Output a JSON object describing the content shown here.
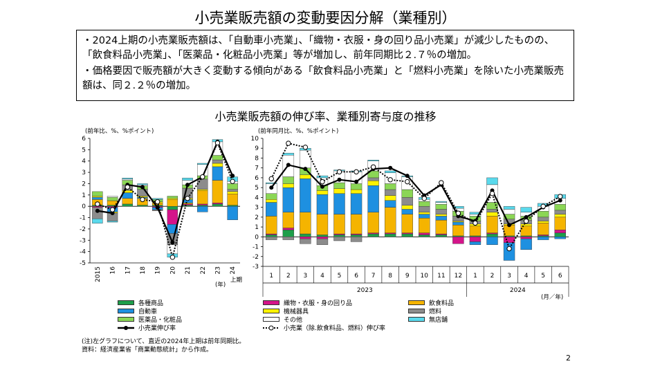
{
  "title": "小売業販売額の変動要因分解（業種別）",
  "summary": {
    "bullet1": "・2024上期の小売業販売額は、「自動車小売業」、「織物・衣服・身の回り品小売業」が減少したものの、「飲食料品小売業」、「医薬品・化粧品小売業」等が増加し、前年同期比２.７％の増加。",
    "bullet2": "・価格要因で販売額が大きく変動する傾向がある「飲食料品小売業」と「燃料小売業」を除いた小売業販売額は、同２.２％の増加。"
  },
  "chart_title": "小売業販売額の伸び率、業種別寄与度の推移",
  "colors": {
    "general": "#1e9e4a",
    "textile": "#d4148a",
    "food": "#f5b400",
    "auto": "#1e90e0",
    "machinery": "#fff200",
    "fuel": "#8c8c8c",
    "medicine": "#8bd655",
    "other": "#ffffff",
    "nonstore": "#5ad9ec",
    "total": "#000000"
  },
  "chart_data": [
    {
      "type": "bar",
      "stacked": true,
      "ylabel": "(前年比、%、%ポイント)",
      "ylim": [
        -5,
        6
      ],
      "yticks": [
        -5,
        -4,
        -3,
        -2,
        -1,
        0,
        1,
        2,
        3,
        4,
        5,
        6
      ],
      "categories": [
        "2015",
        "16",
        "17",
        "18",
        "19",
        "20",
        "21",
        "22",
        "23",
        "24"
      ],
      "xlabel_suffix": "(年)",
      "last_label": "上期",
      "series": [
        {
          "key": "general",
          "values": [
            0.1,
            0.1,
            0.2,
            0.1,
            0.1,
            -0.3,
            0.1,
            0.1,
            0.2,
            0.1
          ]
        },
        {
          "key": "textile",
          "values": [
            -0.1,
            -0.1,
            0.0,
            0.0,
            -0.1,
            -1.3,
            0.1,
            0.1,
            0.1,
            0.0
          ]
        },
        {
          "key": "food",
          "values": [
            0.5,
            0.4,
            0.5,
            0.6,
            0.2,
            0.6,
            0.1,
            1.2,
            2.0,
            1.0
          ]
        },
        {
          "key": "auto",
          "values": [
            0.2,
            -0.4,
            0.5,
            0.1,
            -0.2,
            -0.8,
            0.3,
            -0.5,
            1.2,
            -1.2
          ]
        },
        {
          "key": "machinery",
          "values": [
            0.1,
            -0.1,
            0.2,
            0.1,
            0.1,
            0.1,
            0.1,
            0.1,
            0.3,
            0.2
          ]
        },
        {
          "key": "fuel",
          "values": [
            -1.0,
            -0.7,
            0.5,
            0.6,
            -0.1,
            -1.0,
            0.9,
            0.9,
            0.3,
            0.2
          ]
        },
        {
          "key": "medicine",
          "values": [
            0.4,
            0.3,
            0.4,
            0.3,
            0.2,
            0.2,
            0.3,
            0.3,
            0.4,
            0.5
          ]
        },
        {
          "key": "other",
          "values": [
            0.0,
            0.1,
            0.1,
            0.1,
            0.0,
            -0.8,
            0.4,
            1.0,
            1.2,
            0.2
          ]
        },
        {
          "key": "nonstore",
          "values": [
            -0.4,
            -0.1,
            0.1,
            0.1,
            0.1,
            -0.3,
            0.2,
            0.1,
            0.2,
            0.4
          ]
        }
      ],
      "lines": [
        {
          "key": "total",
          "values": [
            -0.4,
            -0.6,
            1.9,
            1.7,
            -0.1,
            -3.2,
            1.9,
            2.6,
            5.7,
            2.7
          ]
        },
        {
          "key": "ex_food_fuel",
          "values": [
            0.2,
            -0.3,
            1.7,
            0.6,
            0.4,
            -4.5,
            0.7,
            2.6,
            5.6,
            2.2
          ]
        }
      ]
    },
    {
      "type": "bar",
      "stacked": true,
      "ylabel": "(前年同月比、%、%ポイント)",
      "ylim": [
        -3,
        10
      ],
      "yticks": [
        -3,
        -2,
        -1,
        0,
        1,
        2,
        3,
        4,
        5,
        6,
        7,
        8,
        9,
        10
      ],
      "categories": [
        "1",
        "2",
        "3",
        "4",
        "5",
        "6",
        "7",
        "8",
        "9",
        "10",
        "11",
        "12",
        "1",
        "2",
        "3",
        "4",
        "5",
        "6"
      ],
      "year_labels": [
        "2023",
        "2024"
      ],
      "xlabel_suffix": "(月／年)",
      "series": [
        {
          "key": "general",
          "values": [
            0.2,
            0.7,
            0.3,
            0.2,
            0.2,
            0.2,
            0.3,
            0.3,
            0.3,
            0.2,
            0.2,
            0.1,
            0.1,
            0.3,
            0.1,
            0.1,
            0.1,
            0.4
          ]
        },
        {
          "key": "textile",
          "values": [
            0.1,
            0.2,
            -0.2,
            -0.2,
            0.1,
            0.1,
            0.1,
            0.1,
            0.1,
            0.2,
            0.1,
            -0.7,
            -0.5,
            0.1,
            -0.6,
            -0.2,
            0.1,
            0.3
          ]
        },
        {
          "key": "food",
          "values": [
            1.8,
            1.6,
            2.2,
            2.1,
            2.0,
            2.0,
            2.1,
            2.6,
            1.9,
            1.5,
            1.4,
            1.1,
            1.0,
            1.7,
            1.1,
            1.0,
            1.2,
            1.3
          ]
        },
        {
          "key": "auto",
          "values": [
            1.4,
            2.5,
            3.4,
            2.0,
            2.1,
            2.1,
            2.7,
            0.7,
            0.5,
            0.4,
            0.4,
            0.3,
            -0.3,
            -0.8,
            -1.8,
            -1.1,
            -0.3,
            -0.2
          ]
        },
        {
          "key": "machinery",
          "values": [
            0.3,
            0.4,
            0.4,
            0.4,
            0.5,
            0.4,
            0.5,
            0.5,
            0.4,
            0.2,
            0.2,
            0.1,
            0.2,
            0.4,
            0.1,
            0.2,
            0.2,
            0.3
          ]
        },
        {
          "key": "fuel",
          "values": [
            -0.3,
            -0.3,
            -0.5,
            -0.6,
            -0.4,
            -0.5,
            0.3,
            0.6,
            0.8,
            0.6,
            0.5,
            0.5,
            0.3,
            0.3,
            0.5,
            0.4,
            0.4,
            0.4
          ]
        },
        {
          "key": "medicine",
          "values": [
            0.6,
            0.7,
            0.7,
            0.5,
            0.6,
            0.6,
            0.7,
            0.6,
            0.8,
            0.5,
            0.5,
            0.5,
            0.5,
            0.7,
            0.5,
            0.4,
            0.6,
            0.6
          ]
        },
        {
          "key": "other",
          "values": [
            1.0,
            2.2,
            1.8,
            0.8,
            1.2,
            1.2,
            1.0,
            1.1,
            1.3,
            0.2,
            0.2,
            0.3,
            0.2,
            1.8,
            0.5,
            0.4,
            0.5,
            0.6
          ]
        },
        {
          "key": "nonstore",
          "values": [
            0.1,
            0.2,
            0.2,
            0.2,
            0.1,
            0.1,
            0.1,
            0.2,
            0.1,
            0.2,
            0.1,
            0.2,
            0.2,
            0.7,
            0.3,
            0.5,
            0.3,
            0.4
          ]
        }
      ],
      "lines": [
        {
          "key": "total",
          "values": [
            5.0,
            7.3,
            6.9,
            5.1,
            5.8,
            5.6,
            6.9,
            7.0,
            6.2,
            4.2,
            5.3,
            2.1,
            1.6,
            4.7,
            1.2,
            2.0,
            3.0,
            3.7
          ]
        },
        {
          "key": "ex_food_fuel",
          "values": [
            5.9,
            9.5,
            9.1,
            5.6,
            6.6,
            6.6,
            7.1,
            5.8,
            5.6,
            3.9,
            5.5,
            2.4,
            1.4,
            4.4,
            -1.2,
            1.6,
            3.1,
            4.1
          ]
        }
      ]
    }
  ],
  "legend": {
    "general": "各種商品",
    "textile": "織物・衣服・身の回り品",
    "food": "飲食料品",
    "auto": "自動車",
    "machinery": "機械器具",
    "fuel": "燃料",
    "medicine": "医薬品・化粧品",
    "other": "その他",
    "nonstore": "無店舗",
    "total": "小売業伸び率",
    "ex_food_fuel": "小売業（除.飲食料品、燃料）伸び率"
  },
  "notes": {
    "line1": "(注)左グラフについて、直近の2024年上期は前年同期比。",
    "line2": "資料：経済産業省「商業動態統計」から作成。"
  },
  "page_number": "2"
}
